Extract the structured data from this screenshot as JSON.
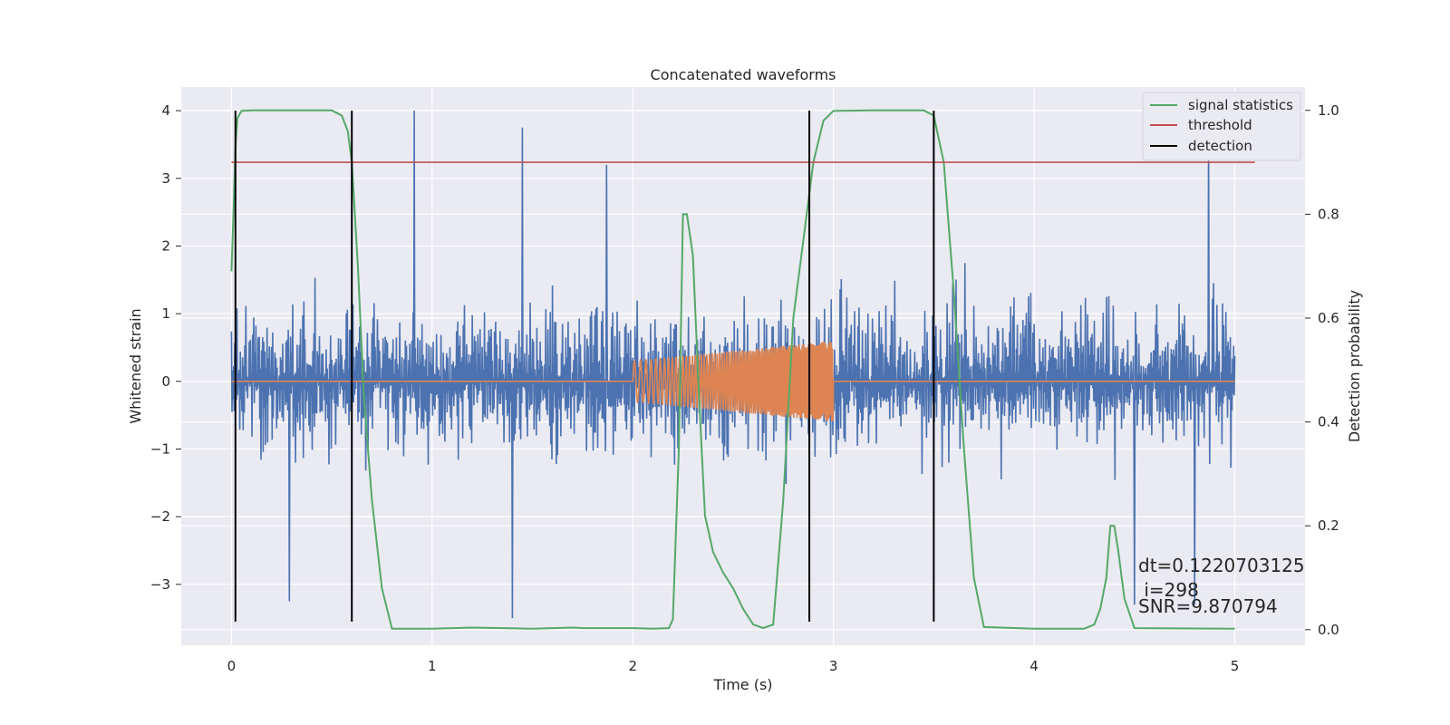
{
  "chart_data": {
    "type": "line",
    "title": "Concatenated waveforms",
    "xlabel": "Time (s)",
    "ylabel_left": "Whitened strain",
    "ylabel_right": "Detection probability",
    "xlim": [
      -0.25,
      5.35
    ],
    "ylim_left": [
      -3.9,
      4.35
    ],
    "ylim_right": [
      -0.03,
      1.045
    ],
    "xticks": [
      0,
      1,
      2,
      3,
      4,
      5
    ],
    "xtick_labels": [
      "0",
      "1",
      "2",
      "3",
      "4",
      "5"
    ],
    "yticks_left": [
      4,
      3,
      2,
      1,
      0,
      -1,
      -2,
      -3
    ],
    "ytick_labels_left": [
      "4",
      "3",
      "2",
      "1",
      "0",
      "−1",
      "−2",
      "−3"
    ],
    "yticks_right": [
      1.0,
      0.8,
      0.6,
      0.4,
      0.2,
      0.0
    ],
    "ytick_labels_right": [
      "1.0",
      "0.8",
      "0.6",
      "0.4",
      "0.2",
      "0.0"
    ],
    "grid": true,
    "legend_position": "top-right",
    "colors": {
      "plot_bg": "#eaeaf2",
      "strain": "#4c72b0",
      "injection": "#dd8452",
      "signal_statistics": "#55a868",
      "threshold": "#c44e52",
      "detection": "#000000",
      "grid": "#ffffff"
    },
    "series": [
      {
        "name": "signal statistics",
        "axis": "right",
        "x": [
          0,
          0.01,
          0.02,
          0.03,
          0.05,
          0.1,
          0.2,
          0.4,
          0.5,
          0.55,
          0.58,
          0.6,
          0.63,
          0.66,
          0.7,
          0.75,
          0.8,
          1.0,
          1.2,
          1.5,
          1.7,
          1.75,
          1.8,
          2.0,
          2.1,
          2.18,
          2.2,
          2.23,
          2.25,
          2.27,
          2.3,
          2.33,
          2.36,
          2.4,
          2.45,
          2.5,
          2.55,
          2.6,
          2.65,
          2.7,
          2.75,
          2.8,
          2.9,
          2.95,
          3.0,
          3.2,
          3.4,
          3.45,
          3.5,
          3.55,
          3.6,
          3.65,
          3.7,
          3.75,
          4.0,
          4.25,
          4.3,
          4.33,
          4.36,
          4.38,
          4.4,
          4.42,
          4.45,
          4.5,
          5.0
        ],
        "y": [
          0.69,
          0.8,
          0.93,
          0.985,
          0.999,
          1.0,
          1.0,
          1.0,
          1.0,
          0.99,
          0.96,
          0.9,
          0.7,
          0.45,
          0.25,
          0.08,
          0.002,
          0.002,
          0.004,
          0.002,
          0.004,
          0.003,
          0.003,
          0.003,
          0.002,
          0.003,
          0.02,
          0.35,
          0.8,
          0.8,
          0.72,
          0.45,
          0.22,
          0.15,
          0.11,
          0.08,
          0.04,
          0.01,
          0.003,
          0.01,
          0.25,
          0.6,
          0.9,
          0.98,
          0.999,
          1.0,
          1.0,
          1.0,
          0.99,
          0.9,
          0.65,
          0.35,
          0.1,
          0.005,
          0.002,
          0.002,
          0.01,
          0.04,
          0.1,
          0.2,
          0.2,
          0.15,
          0.06,
          0.003,
          0.002
        ]
      },
      {
        "name": "threshold",
        "axis": "right",
        "x": [
          0,
          5.1
        ],
        "y": [
          0.9,
          0.9
        ]
      },
      {
        "name": "detection",
        "axis": "left",
        "x": [
          0.02,
          0.6,
          2.88,
          3.5
        ],
        "y_range": [
          -3.55,
          4.0
        ]
      },
      {
        "axis": "left",
        "kind": "noise",
        "x_range": [
          0,
          5
        ],
        "y_typical_range": [
          -1.8,
          2.3
        ],
        "y_extrema": [
          -3.55,
          4.0
        ],
        "peaks": [
          [
            0.91,
            4.0
          ],
          [
            1.45,
            3.75
          ],
          [
            1.87,
            3.2
          ],
          [
            4.87,
            3.65
          ],
          [
            1.4,
            -3.5
          ],
          [
            0.29,
            -3.25
          ],
          [
            4.5,
            -3.3
          ],
          [
            4.8,
            -3.3
          ]
        ]
      },
      {
        "axis": "left",
        "kind": "chirp",
        "x_range": [
          2.0,
          3.0
        ],
        "amplitude_range": [
          0.3,
          0.6
        ]
      }
    ],
    "annotations": [
      "dt=0.1220703125",
      " i=298",
      "SNR=9.870794"
    ]
  }
}
